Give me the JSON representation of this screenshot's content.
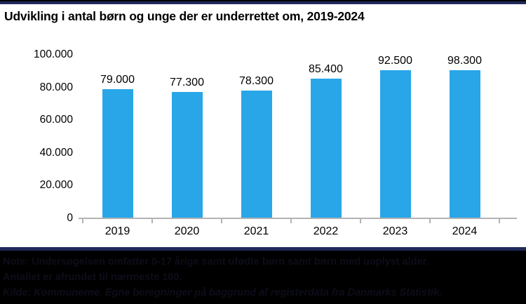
{
  "title": "Udvikling i antal børn og unge der er underrettet om, 2019-2024",
  "colors": {
    "bar": "#29a6e8",
    "top_band_navy": "#20295a",
    "axis_line": "#b3b3b3",
    "footer_background": "#000000",
    "footer_text": "#0d0d1a"
  },
  "chart_data": {
    "type": "bar",
    "title": "Udvikling i antal børn og unge der er underrettet om, 2019-2024",
    "categories": [
      "2019",
      "2020",
      "2021",
      "2022",
      "2023",
      "2024"
    ],
    "values": [
      79000,
      77300,
      78300,
      85400,
      92500,
      98300
    ],
    "value_labels": [
      "79.000",
      "77.300",
      "78.300",
      "85.400",
      "92.500",
      "98.300"
    ],
    "xlabel": "",
    "ylabel": "",
    "ylim": [
      0,
      100000
    ],
    "yticks": [
      {
        "value": 0,
        "label": "0"
      },
      {
        "value": 20000,
        "label": "20.000"
      },
      {
        "value": 40000,
        "label": "40.000"
      },
      {
        "value": 60000,
        "label": "60.000"
      },
      {
        "value": 80000,
        "label": "80.000"
      },
      {
        "value": 100000,
        "label": "100.000"
      }
    ],
    "grid": false,
    "legend": false,
    "bar_color": "#29a6e8"
  },
  "footer": {
    "note_line1": "Note: Undersøgelsen omfatter 0-17 årige samt ufødte børn samt børn med uoplyst alder.",
    "note_line2": "Antallet er afrundet til nærmeste 100.",
    "source_line": "Kilde: Kommunerne. Egne beregninger på baggrund af registerdata fra Danmarks Statistik."
  }
}
